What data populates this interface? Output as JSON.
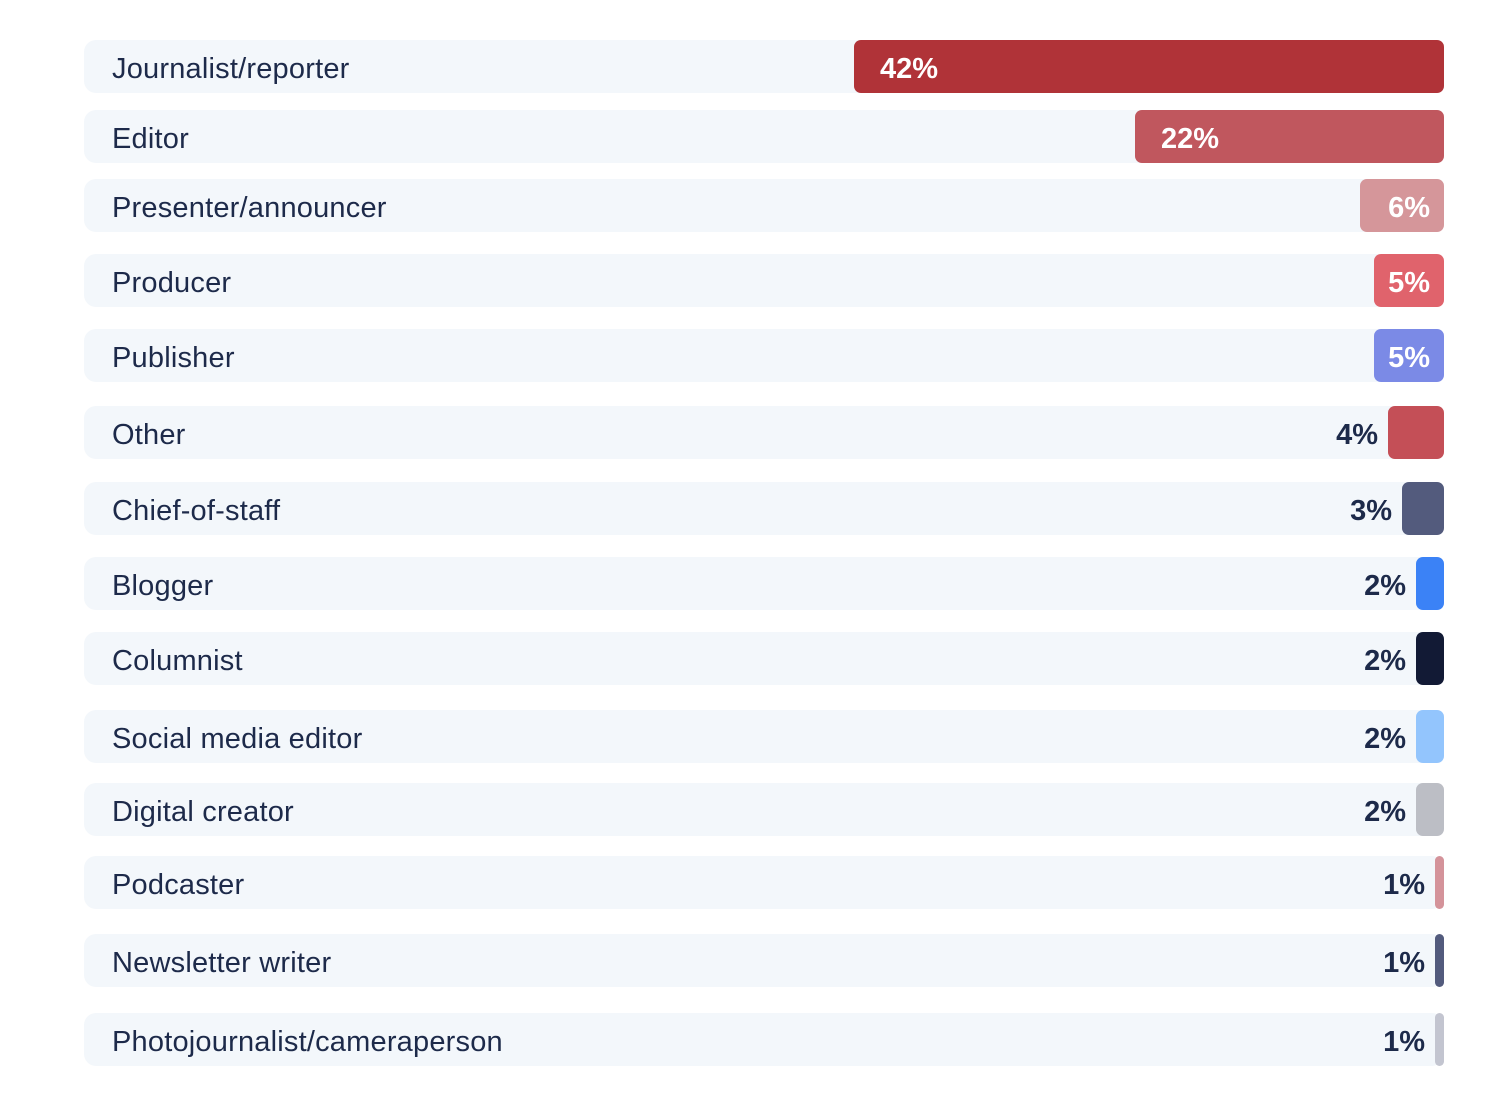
{
  "chart_data": {
    "type": "bar",
    "orientation": "horizontal",
    "categories": [
      "Journalist/reporter",
      "Editor",
      "Presenter/announcer",
      "Producer",
      "Publisher",
      "Other",
      "Chief-of-staff",
      "Blogger",
      "Columnist",
      "Social media editor",
      "Digital creator",
      "Podcaster",
      "Newsletter writer",
      "Photojournalist/cameraperson"
    ],
    "values": [
      42,
      22,
      6,
      5,
      5,
      4,
      3,
      2,
      2,
      2,
      2,
      1,
      1,
      1
    ],
    "value_labels": [
      "42%",
      "22%",
      "6%",
      "5%",
      "5%",
      "4%",
      "3%",
      "2%",
      "2%",
      "2%",
      "2%",
      "1%",
      "1%",
      "1%"
    ],
    "colors": [
      "#b03338",
      "#c0575e",
      "#d5969a",
      "#e0636c",
      "#7b8ae6",
      "#c44f57",
      "#535b7d",
      "#3b82f6",
      "#121a35",
      "#93c5fd",
      "#bcbec5",
      "#d4939a",
      "#535b7d",
      "#c3c5d0"
    ],
    "xlim": [
      0,
      42
    ],
    "grid": false,
    "title": "",
    "xlabel": "",
    "ylabel": ""
  }
}
